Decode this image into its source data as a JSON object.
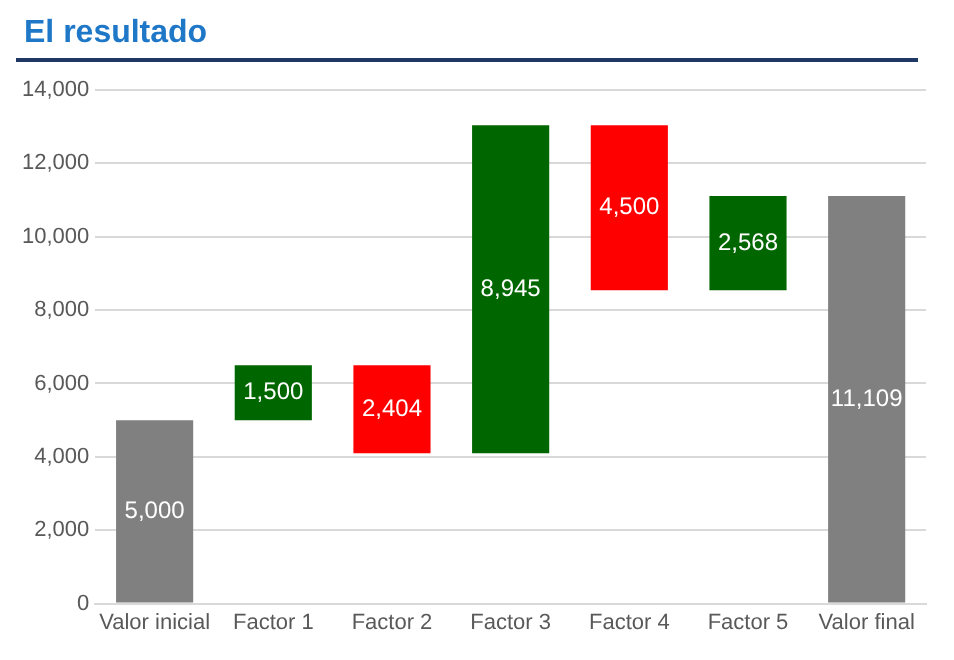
{
  "chart_data": {
    "type": "bar",
    "title": "El resultado",
    "categories": [
      "Valor inicial",
      "Factor 1",
      "Factor 2",
      "Factor 3",
      "Factor 4",
      "Factor 5",
      "Valor final"
    ],
    "values": [
      5000,
      1500,
      2404,
      8945,
      4500,
      2568,
      11109
    ],
    "base": [
      0,
      5000,
      4096,
      4096,
      8541,
      8541,
      0
    ],
    "colors": [
      "#808080",
      "#006600",
      "#ff0000",
      "#006600",
      "#ff0000",
      "#006600",
      "#808080"
    ],
    "value_labels": [
      "5,000",
      "1,500",
      "2,404",
      "8,945",
      "4,500",
      "2,568",
      "11,109"
    ],
    "ylim": [
      0,
      14000
    ],
    "yticks": [
      {
        "value": 0,
        "label": "0"
      },
      {
        "value": 2000,
        "label": "2,000"
      },
      {
        "value": 4000,
        "label": "4,000"
      },
      {
        "value": 6000,
        "label": "6,000"
      },
      {
        "value": 8000,
        "label": "8,000"
      },
      {
        "value": 10000,
        "label": "10,000"
      },
      {
        "value": 12000,
        "label": "12,000"
      },
      {
        "value": 14000,
        "label": "14,000"
      }
    ],
    "grid": "y",
    "legend": false
  }
}
